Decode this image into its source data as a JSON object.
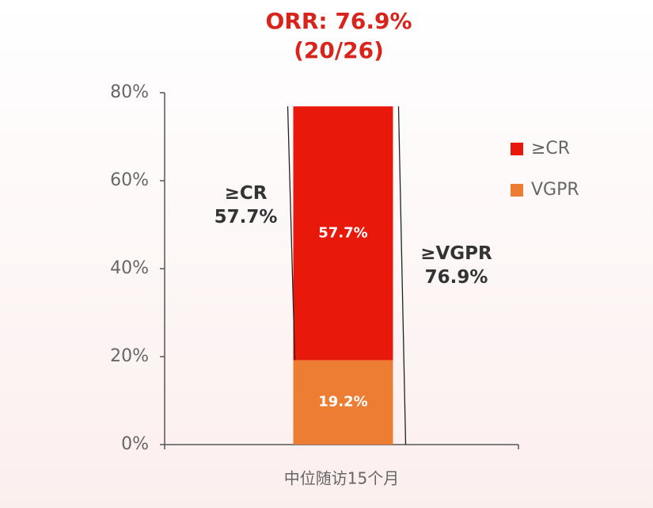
{
  "chart_data": {
    "type": "stacked-bar",
    "title": "ORR: 76.9%",
    "subtitle": "(20/26)",
    "categories": [
      "中位随访15个月"
    ],
    "series": [
      {
        "name": "≥CR",
        "color": "#e8190b",
        "values": [
          57.7
        ],
        "value_labels": [
          "57.7%"
        ]
      },
      {
        "name": "VGPR",
        "color": "#ee7d34",
        "values": [
          19.2
        ],
        "value_labels": [
          "19.2%"
        ]
      }
    ],
    "ylim": [
      0,
      80
    ],
    "yticks": [
      {
        "value": 0,
        "label": "0%"
      },
      {
        "value": 20,
        "label": "20%"
      },
      {
        "value": 40,
        "label": "40%"
      },
      {
        "value": 60,
        "label": "60%"
      },
      {
        "value": 80,
        "label": "80%"
      }
    ],
    "grid": false,
    "legend": "right",
    "annotations": [
      {
        "lines": [
          "≥CR",
          "57.7%"
        ]
      },
      {
        "lines": [
          "≥VGPR",
          "76.9%"
        ]
      }
    ]
  }
}
